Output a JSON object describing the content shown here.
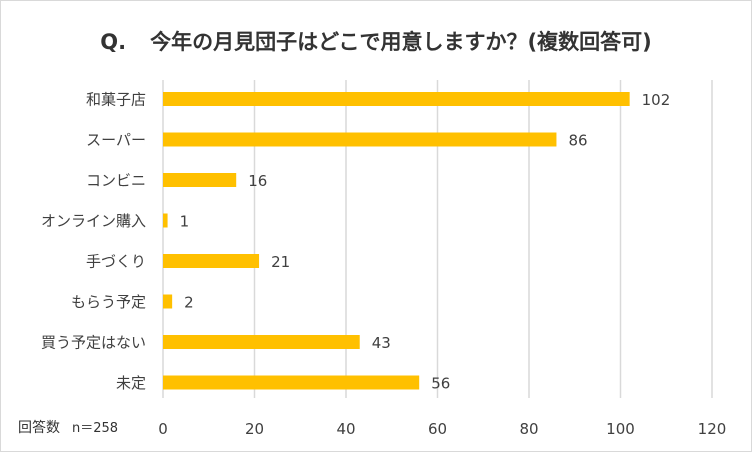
{
  "chart_data": {
    "type": "bar",
    "orientation": "horizontal",
    "title_prefix": "Q.",
    "title": "今年の月見団子はどこで用意しますか？(複数回答可)",
    "categories": [
      "和菓子店",
      "スーパー",
      "コンビニ",
      "オンライン購入",
      "手づくり",
      "もらう予定",
      "買う予定はない",
      "未定"
    ],
    "values": [
      102,
      86,
      16,
      1,
      21,
      2,
      43,
      56
    ],
    "xlim": [
      0,
      120
    ],
    "xticks": [
      0,
      20,
      40,
      60,
      80,
      100,
      120
    ],
    "grid": true,
    "bar_color": "#FFC000",
    "data_labels": true,
    "footnote_label": "回答数",
    "footnote_n": "n＝258"
  }
}
